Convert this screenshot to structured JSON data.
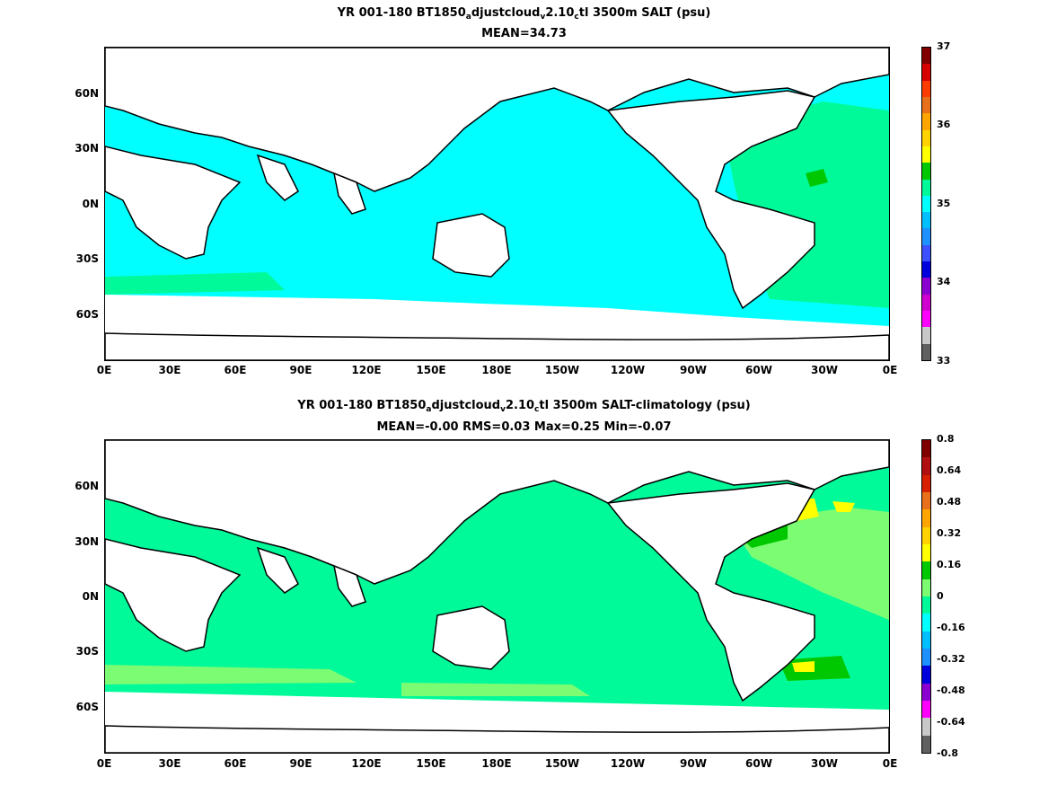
{
  "panels": [
    {
      "title_parts": [
        "YR 001-180 BT1850",
        "a",
        "djustcloud",
        "v",
        "2.10",
        "c",
        "tl 3500m SALT (psu)"
      ],
      "subtitle": "MEAN=34.73",
      "x_ticks": [
        "0E",
        "30E",
        "60E",
        "90E",
        "120E",
        "150E",
        "180E",
        "150W",
        "120W",
        "90W",
        "60W",
        "30W",
        "0E"
      ],
      "y_ticks": [
        "60N",
        "30N",
        "0N",
        "30S",
        "60S"
      ],
      "colorbar_ticks": [
        "37",
        "36",
        "35",
        "34",
        "33"
      ],
      "colorbar_colors": [
        "#800000",
        "#d60000",
        "#ff3c00",
        "#e8701a",
        "#ffa500",
        "#ffd200",
        "#ffff00",
        "#00c800",
        "#00fa9a",
        "#00ffff",
        "#00bfff",
        "#1e90ff",
        "#3c50ff",
        "#0000dc",
        "#8b00d0",
        "#d000d0",
        "#ff00ff",
        "#c8c8c8",
        "#606060"
      ]
    },
    {
      "title_parts": [
        "YR 001-180 BT1850",
        "a",
        "djustcloud",
        "v",
        "2.10",
        "c",
        "tl 3500m SALT-climatology (psu)"
      ],
      "subtitle": "MEAN=-0.00   RMS=0.03   Max=0.25   Min=-0.07",
      "x_ticks": [
        "0E",
        "30E",
        "60E",
        "90E",
        "120E",
        "150E",
        "180E",
        "150W",
        "120W",
        "90W",
        "60W",
        "30W",
        "0E"
      ],
      "y_ticks": [
        "60N",
        "30N",
        "0N",
        "30S",
        "60S"
      ],
      "colorbar_ticks": [
        "0.8",
        "0.64",
        "0.48",
        "0.32",
        "0.16",
        "0",
        "-0.16",
        "-0.32",
        "-0.48",
        "-0.64",
        "-0.8"
      ],
      "colorbar_colors": [
        "#800000",
        "#b01010",
        "#d62000",
        "#e8701a",
        "#ffa500",
        "#ffd200",
        "#ffff00",
        "#00c800",
        "#7cfc72",
        "#00fa9a",
        "#00ffff",
        "#00bfff",
        "#1e90ff",
        "#0000dc",
        "#8b00d0",
        "#ff00ff",
        "#c8c8c8",
        "#606060"
      ]
    }
  ]
}
